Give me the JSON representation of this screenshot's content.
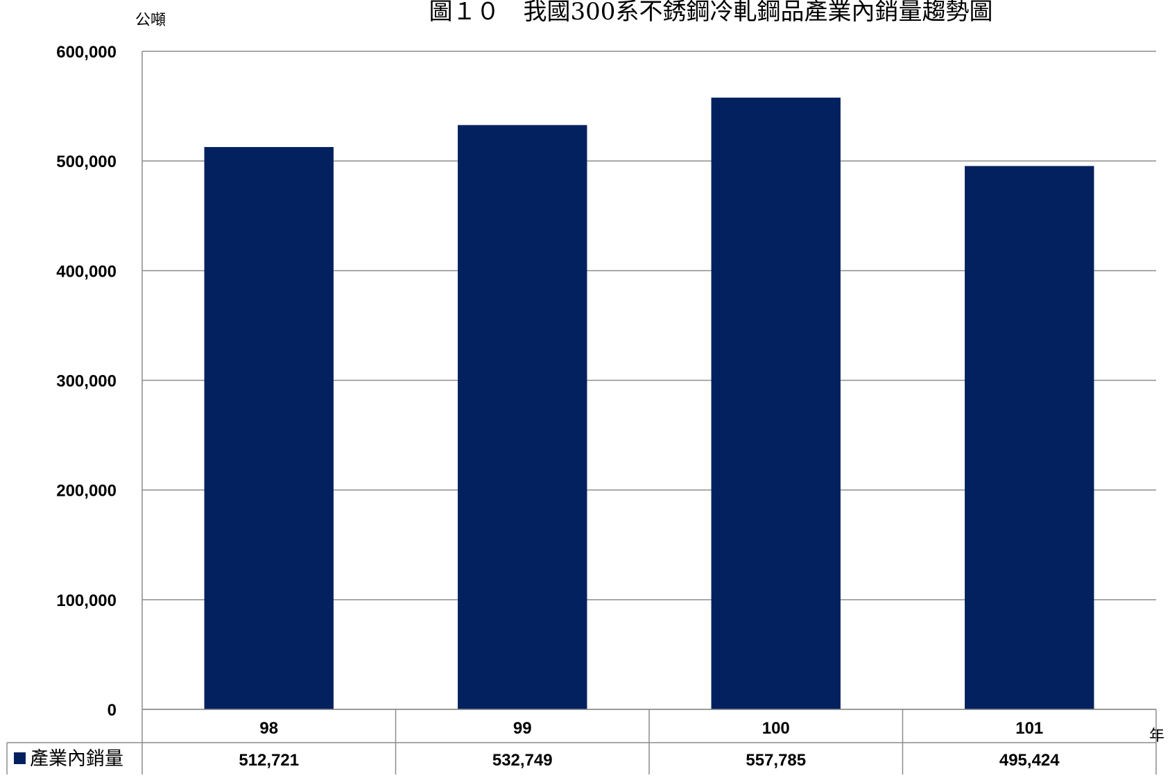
{
  "chart_data": {
    "type": "bar",
    "title": "圖１０　我國300系不銹鋼冷軋鋼品產業內銷量趨勢圖",
    "ylabel": "公噸",
    "xlabel": "年",
    "categories": [
      "98",
      "99",
      "100",
      "101"
    ],
    "series": [
      {
        "name": "產業內銷量",
        "values": [
          512721,
          532749,
          557785,
          495424
        ],
        "labels": [
          "512,721",
          "532,749",
          "557,785",
          "495,424"
        ],
        "color": "#03215f"
      }
    ],
    "ylim": [
      0,
      600000
    ],
    "yticks": [
      0,
      100000,
      200000,
      300000,
      400000,
      500000,
      600000
    ],
    "ytick_labels": [
      "0",
      "100,000",
      "200,000",
      "300,000",
      "400,000",
      "500,000",
      "600,000"
    ],
    "grid": true,
    "data_table": true,
    "legend": "data-table-left"
  }
}
